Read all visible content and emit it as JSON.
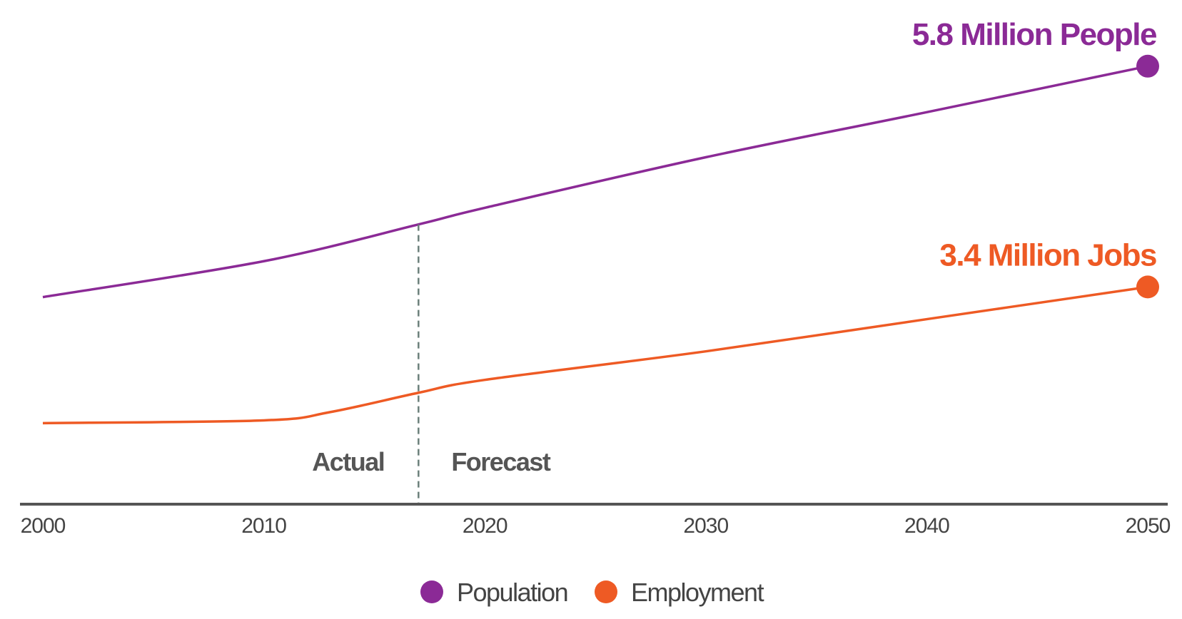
{
  "chart_data": {
    "type": "line",
    "title": "",
    "xlabel": "",
    "ylabel": "",
    "xlim": [
      2000,
      2050
    ],
    "x_ticks": [
      "2000",
      "2010",
      "2020",
      "2030",
      "2040",
      "2050"
    ],
    "y_axis_shown": false,
    "grid": false,
    "legend_position": "bottom",
    "divider": {
      "x": 2017,
      "left_label": "Actual",
      "right_label": "Forecast"
    },
    "series": [
      {
        "name": "Population",
        "color": "#8B2A96",
        "x": [
          2000,
          2010,
          2017,
          2020,
          2030,
          2040,
          2050
        ],
        "y": [
          3.29,
          3.68,
          4.08,
          4.26,
          4.81,
          5.3,
          5.8
        ],
        "end_label": "5.8 Million People"
      },
      {
        "name": "Employment",
        "color": "#EE5A24",
        "x": [
          2000,
          2010,
          2013,
          2017,
          2020,
          2030,
          2040,
          2050
        ],
        "y": [
          1.92,
          1.95,
          2.04,
          2.25,
          2.39,
          2.7,
          3.05,
          3.4
        ],
        "end_label": "3.4 Million Jobs"
      }
    ],
    "units": "millions"
  }
}
